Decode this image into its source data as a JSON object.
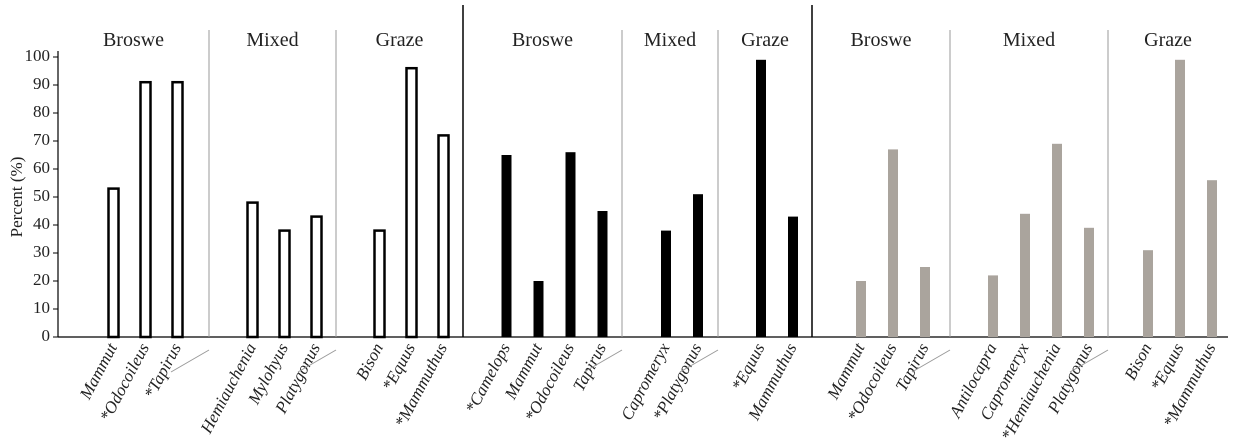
{
  "chart_data": {
    "type": "bar",
    "ylabel": "Percent (%)",
    "ylim": [
      0,
      100
    ],
    "yticks": [
      0,
      10,
      20,
      30,
      40,
      50,
      60,
      70,
      80,
      90,
      100
    ],
    "panels": [
      {
        "color": "#000000",
        "filled": false,
        "groups": [
          {
            "name": "Broswe",
            "categories": [
              "Mammut",
              "*Odocoileus",
              "*Tapirus"
            ],
            "values": [
              53,
              91,
              91
            ]
          },
          {
            "name": "Mixed",
            "categories": [
              "Hemiauchenia",
              "Mylohyus",
              "Platygonus"
            ],
            "values": [
              48,
              38,
              43
            ]
          },
          {
            "name": "Graze",
            "categories": [
              "Bison",
              "*Equus",
              "*Mammuthus"
            ],
            "values": [
              38,
              96,
              72
            ]
          }
        ]
      },
      {
        "color": "#000000",
        "filled": true,
        "groups": [
          {
            "name": "Broswe",
            "categories": [
              "*Camelops",
              "Mammut",
              "*Odocoileus",
              "Tapirus"
            ],
            "values": [
              65,
              20,
              66,
              45
            ]
          },
          {
            "name": "Mixed",
            "categories": [
              "Capromeryx",
              "*Platygonus"
            ],
            "values": [
              38,
              51
            ]
          },
          {
            "name": "Graze",
            "categories": [
              "*Equus",
              "Mammuthus"
            ],
            "values": [
              99,
              43
            ]
          }
        ]
      },
      {
        "color": "#aaa49d",
        "filled": true,
        "groups": [
          {
            "name": "Broswe",
            "categories": [
              "Mammut",
              "*Odocoileus",
              "Tapirus"
            ],
            "values": [
              20,
              67,
              25
            ]
          },
          {
            "name": "Mixed",
            "categories": [
              "Antilocapra",
              "Capromeryx",
              "*Hemiauchenia",
              "Platygonus"
            ],
            "values": [
              22,
              44,
              69,
              39
            ]
          },
          {
            "name": "Graze",
            "categories": [
              "Bison",
              "*Equus",
              "*Mammuthus"
            ],
            "values": [
              31,
              99,
              56
            ]
          }
        ]
      }
    ]
  }
}
